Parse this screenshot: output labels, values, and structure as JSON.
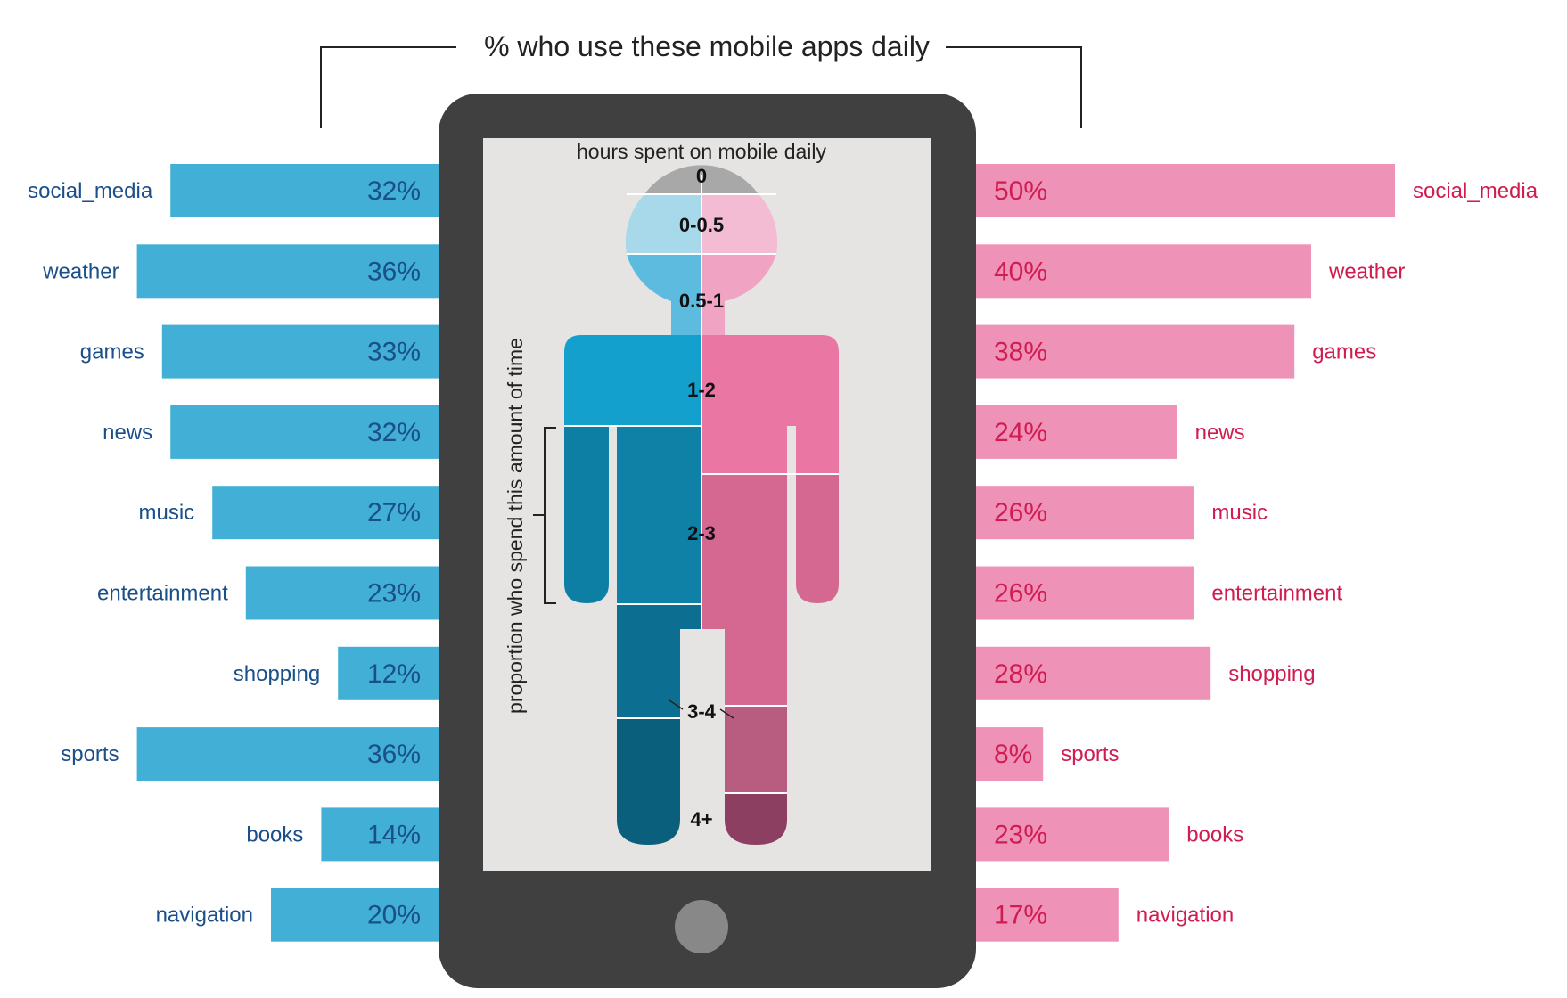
{
  "colors": {
    "left_bar": "#42b0d6",
    "left_text": "#1a4f8a",
    "right_bar": "#ef92b7",
    "right_text": "#d01c50",
    "phone": "#404040",
    "screen": "#e6e4e2",
    "home_button": "#888888"
  },
  "chart_data": [
    {
      "type": "bar",
      "orientation": "horizontal",
      "direction": "right-to-left",
      "title": "% who use these mobile apps daily",
      "categories": [
        "social_media",
        "weather",
        "games",
        "news",
        "music",
        "entertainment",
        "shopping",
        "sports",
        "books",
        "navigation"
      ],
      "values": [
        32,
        36,
        33,
        32,
        27,
        23,
        12,
        36,
        14,
        20
      ],
      "value_labels": [
        "32%",
        "36%",
        "33%",
        "32%",
        "27%",
        "23%",
        "12%",
        "36%",
        "14%",
        "20%"
      ],
      "unit": "%"
    },
    {
      "type": "bar",
      "orientation": "horizontal",
      "direction": "left-to-right",
      "title": "% who use these mobile apps daily",
      "categories": [
        "social_media",
        "weather",
        "games",
        "news",
        "music",
        "entertainment",
        "shopping",
        "sports",
        "books",
        "navigation"
      ],
      "values": [
        50,
        40,
        38,
        24,
        26,
        26,
        28,
        8,
        23,
        17
      ],
      "value_labels": [
        "50%",
        "40%",
        "38%",
        "24%",
        "26%",
        "26%",
        "28%",
        "8%",
        "23%",
        "17%"
      ],
      "unit": "%"
    }
  ],
  "figure": {
    "title": "hours spent on mobile daily",
    "axis_label": "proportion who spend this amount of time",
    "segments": [
      "0",
      "0-0.5",
      "0.5-1",
      "1-2",
      "2-3",
      "3-4",
      "4+"
    ]
  }
}
